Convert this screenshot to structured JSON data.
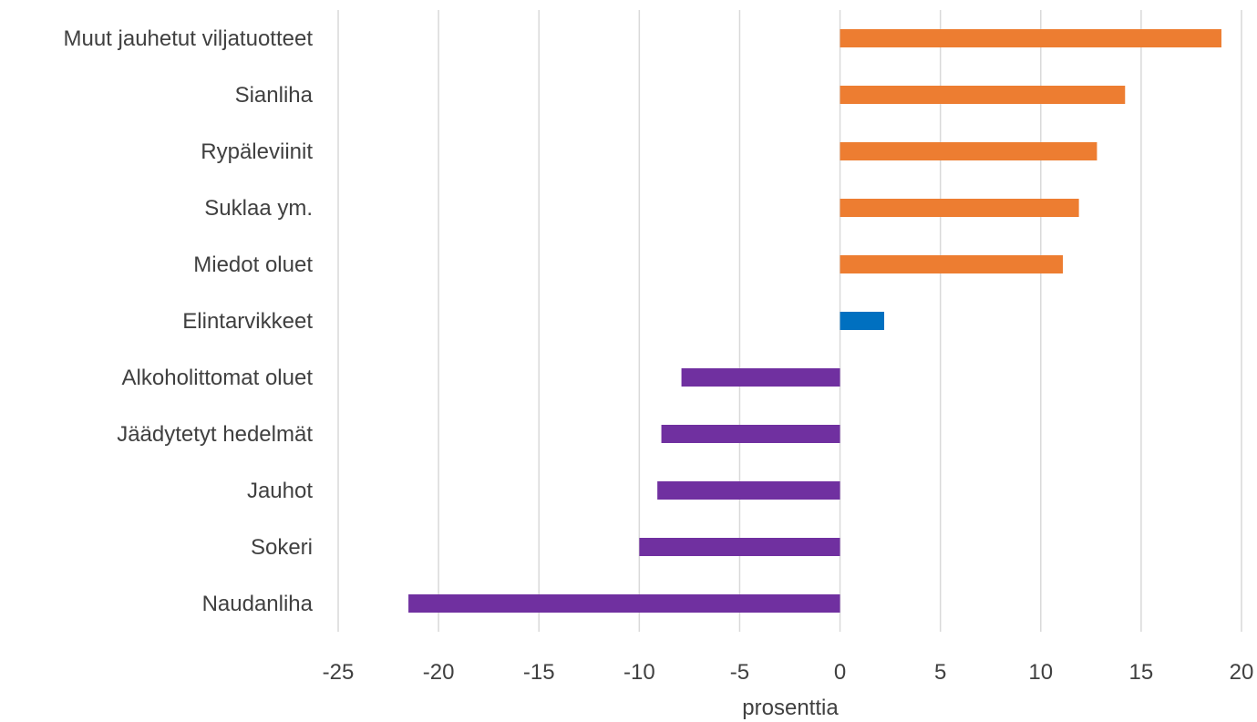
{
  "chart_data": {
    "type": "bar",
    "orientation": "horizontal",
    "categories": [
      "Muut jauhetut viljatuotteet",
      "Sianliha",
      "Rypäleviinit",
      "Suklaa ym.",
      "Miedot oluet",
      "Elintarvikkeet",
      "Alkoholittomat oluet",
      "Jäädytetyt hedelmät",
      "Jauhot",
      "Sokeri",
      "Naudanliha"
    ],
    "values": [
      19.0,
      14.2,
      12.8,
      11.9,
      11.1,
      2.2,
      -7.9,
      -8.9,
      -9.1,
      -10.0,
      -21.5
    ],
    "colors": [
      "#ed7d31",
      "#ed7d31",
      "#ed7d31",
      "#ed7d31",
      "#ed7d31",
      "#0070c0",
      "#7030a0",
      "#7030a0",
      "#7030a0",
      "#7030a0",
      "#7030a0"
    ],
    "xlabel": "prosenttia",
    "xlim": [
      -25,
      20
    ],
    "xticks": [
      -25,
      -20,
      -15,
      -10,
      -5,
      0,
      5,
      10,
      15,
      20
    ],
    "xtick_labels": [
      "-25",
      "-20",
      "-15",
      "-10",
      "-5",
      "0",
      "5",
      "10",
      "15",
      "20"
    ],
    "grid": true,
    "legend": "none"
  }
}
